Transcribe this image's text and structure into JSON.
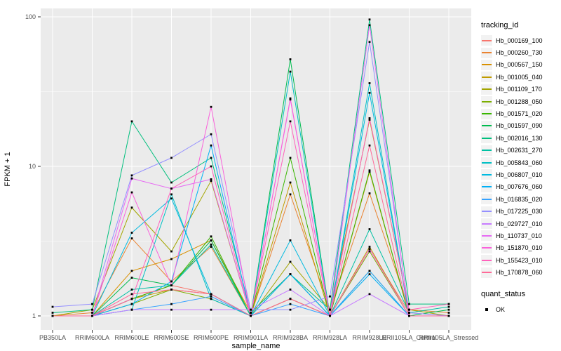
{
  "figure": {
    "background": "#FFFFFF",
    "panel_background": "#EBEBEB",
    "gridline_color": "#FFFFFF",
    "tick_color": "#333333",
    "tick_text_color": "#4D4D4D",
    "point_color": "#000000",
    "legend_key_background": "#F2F2F2"
  },
  "chart_data": {
    "type": "line",
    "title": "",
    "xlabel": "sample_name",
    "ylabel": "FPKM + 1",
    "y_scale": "log10",
    "y_ticks": [
      1,
      10,
      100
    ],
    "y_minor_ticks": [
      3.162,
      31.62
    ],
    "ylim": [
      0.8,
      120
    ],
    "grid": true,
    "legend_position": "right",
    "categories": [
      "PB350LA",
      "RRIM600LA",
      "RRIM600LE",
      "RRIM600SE",
      "RRIM600PE",
      "RRIM901LA",
      "RRIM928BA",
      "RRIM928LA",
      "RRIM928LE",
      "RRII105LA_Control",
      "RRII105LA_Stressed"
    ],
    "series": [
      {
        "name": "Hb_000169_100",
        "color": "#F8766D",
        "values": [
          1.0,
          1.0,
          1.3,
          1.6,
          1.4,
          1.0,
          1.3,
          1.0,
          2.8,
          1.05,
          1.0
        ]
      },
      {
        "name": "Hb_000260_730",
        "color": "#EA8331",
        "values": [
          1.0,
          1.05,
          3.3,
          1.7,
          2.9,
          1.0,
          6.5,
          1.1,
          6.6,
          1.1,
          1.05
        ]
      },
      {
        "name": "Hb_000567_150",
        "color": "#D89000",
        "values": [
          1.0,
          1.0,
          2.0,
          2.4,
          3.2,
          1.05,
          1.9,
          1.0,
          9.2,
          1.0,
          1.0
        ]
      },
      {
        "name": "Hb_001005_040",
        "color": "#C09B00",
        "values": [
          1.0,
          1.0,
          1.3,
          1.5,
          1.4,
          1.0,
          7.8,
          1.0,
          2.9,
          1.0,
          1.0
        ]
      },
      {
        "name": "Hb_001109_170",
        "color": "#A3A500",
        "values": [
          1.0,
          1.1,
          5.3,
          2.7,
          8.0,
          1.0,
          2.3,
          1.1,
          20.5,
          1.1,
          1.0
        ]
      },
      {
        "name": "Hb_001288_050",
        "color": "#7CAE00",
        "values": [
          1.0,
          1.0,
          1.2,
          1.5,
          1.3,
          1.0,
          1.3,
          1.0,
          2.7,
          1.0,
          1.0
        ]
      },
      {
        "name": "Hb_001571_020",
        "color": "#39B600",
        "values": [
          1.0,
          1.0,
          1.3,
          1.6,
          3.4,
          1.0,
          11.4,
          1.0,
          9.4,
          1.0,
          1.0
        ]
      },
      {
        "name": "Hb_001597_090",
        "color": "#00BB4E",
        "values": [
          1.0,
          1.0,
          1.8,
          1.6,
          3.2,
          1.0,
          52.0,
          1.0,
          2.0,
          1.0,
          1.1
        ]
      },
      {
        "name": "Hb_002016_130",
        "color": "#00BF7D",
        "values": [
          1.05,
          1.1,
          20.0,
          7.8,
          11.4,
          1.05,
          1.9,
          1.1,
          96.0,
          1.2,
          1.2
        ]
      },
      {
        "name": "Hb_002631_270",
        "color": "#00C1A3",
        "values": [
          1.0,
          1.0,
          1.5,
          1.6,
          3.0,
          1.0,
          1.9,
          1.0,
          3.8,
          1.05,
          1.15
        ]
      },
      {
        "name": "Hb_005843_060",
        "color": "#00BFC4",
        "values": [
          1.0,
          1.0,
          1.1,
          6.5,
          1.3,
          1.0,
          43.0,
          1.0,
          36.0,
          1.0,
          1.0
        ]
      },
      {
        "name": "Hb_006807_010",
        "color": "#00BAE0",
        "values": [
          1.0,
          1.0,
          3.6,
          6.1,
          1.4,
          1.0,
          3.2,
          1.0,
          31.0,
          1.0,
          1.0
        ]
      },
      {
        "name": "Hb_007676_060",
        "color": "#00B0F6",
        "values": [
          1.0,
          1.0,
          1.2,
          1.7,
          13.8,
          1.0,
          1.9,
          1.0,
          1.9,
          1.0,
          1.0
        ]
      },
      {
        "name": "Hb_016835_020",
        "color": "#35A2FF",
        "values": [
          1.0,
          1.0,
          1.1,
          1.2,
          1.35,
          1.0,
          1.2,
          1.0,
          2.0,
          1.0,
          1.0
        ]
      },
      {
        "name": "Hb_017225_030",
        "color": "#9590FF",
        "values": [
          1.15,
          1.2,
          8.7,
          11.4,
          16.4,
          1.1,
          1.1,
          1.35,
          68.0,
          1.05,
          1.0
        ]
      },
      {
        "name": "Hb_029727_010",
        "color": "#C77CFF",
        "values": [
          1.0,
          1.0,
          1.1,
          1.1,
          1.1,
          1.1,
          1.5,
          1.0,
          1.4,
          1.0,
          1.0
        ]
      },
      {
        "name": "Hb_110737_010",
        "color": "#E76BF3",
        "values": [
          1.0,
          1.0,
          8.3,
          7.1,
          8.2,
          1.0,
          28.0,
          1.0,
          88.0,
          1.0,
          1.0
        ]
      },
      {
        "name": "Hb_151870_010",
        "color": "#FA62DB",
        "values": [
          1.0,
          1.0,
          6.7,
          1.6,
          25.0,
          1.0,
          28.5,
          1.0,
          2.8,
          1.0,
          1.0
        ]
      },
      {
        "name": "Hb_155423_010",
        "color": "#FF62BC",
        "values": [
          1.0,
          1.0,
          1.3,
          7.1,
          10.0,
          1.0,
          20.0,
          1.0,
          21.0,
          1.1,
          1.2
        ]
      },
      {
        "name": "Hb_170878_060",
        "color": "#FF6A98",
        "values": [
          1.0,
          1.0,
          1.4,
          1.5,
          1.4,
          1.0,
          1.3,
          1.0,
          13.8,
          1.0,
          1.0
        ]
      }
    ],
    "legend": {
      "color_title": "tracking_id",
      "shape_title": "quant_status",
      "shape_items": [
        {
          "label": "OK"
        }
      ]
    }
  }
}
